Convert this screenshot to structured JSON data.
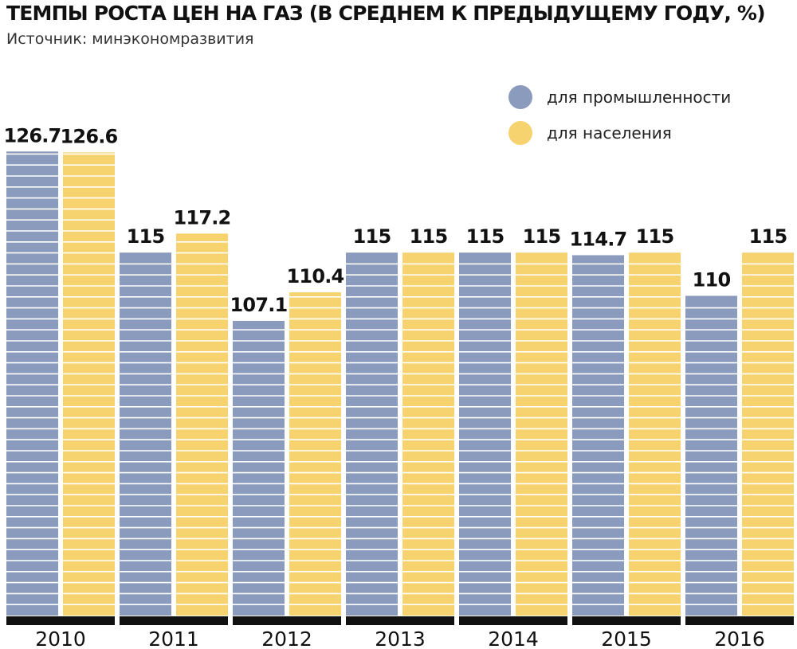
{
  "chart_data": {
    "type": "bar",
    "title": "ТЕМПЫ РОСТА ЦЕН НА ГАЗ (В СРЕДНЕМ К ПРЕДЫДУЩЕМУ ГОДУ, %)",
    "subtitle": "Источник: минэкономразвития",
    "categories": [
      "2010",
      "2011",
      "2012",
      "2013",
      "2014",
      "2015",
      "2016"
    ],
    "series": [
      {
        "name": "для промышленности",
        "color": "#8b9bbd",
        "values": [
          126.7,
          115,
          107.1,
          115,
          115,
          114.7,
          110
        ],
        "labels": [
          "126.7",
          "115",
          "107.1",
          "115",
          "115",
          "114.7",
          "110"
        ]
      },
      {
        "name": "для населения",
        "color": "#f7d36f",
        "values": [
          126.6,
          117.2,
          110.4,
          115,
          115,
          115,
          115
        ],
        "labels": [
          "126.6",
          "117.2",
          "110.4",
          "115",
          "115",
          "115",
          "115"
        ]
      }
    ],
    "ylim": [
      73,
      127
    ],
    "legend_position": "top-right",
    "grid": false,
    "baseline_color": "#111111"
  }
}
